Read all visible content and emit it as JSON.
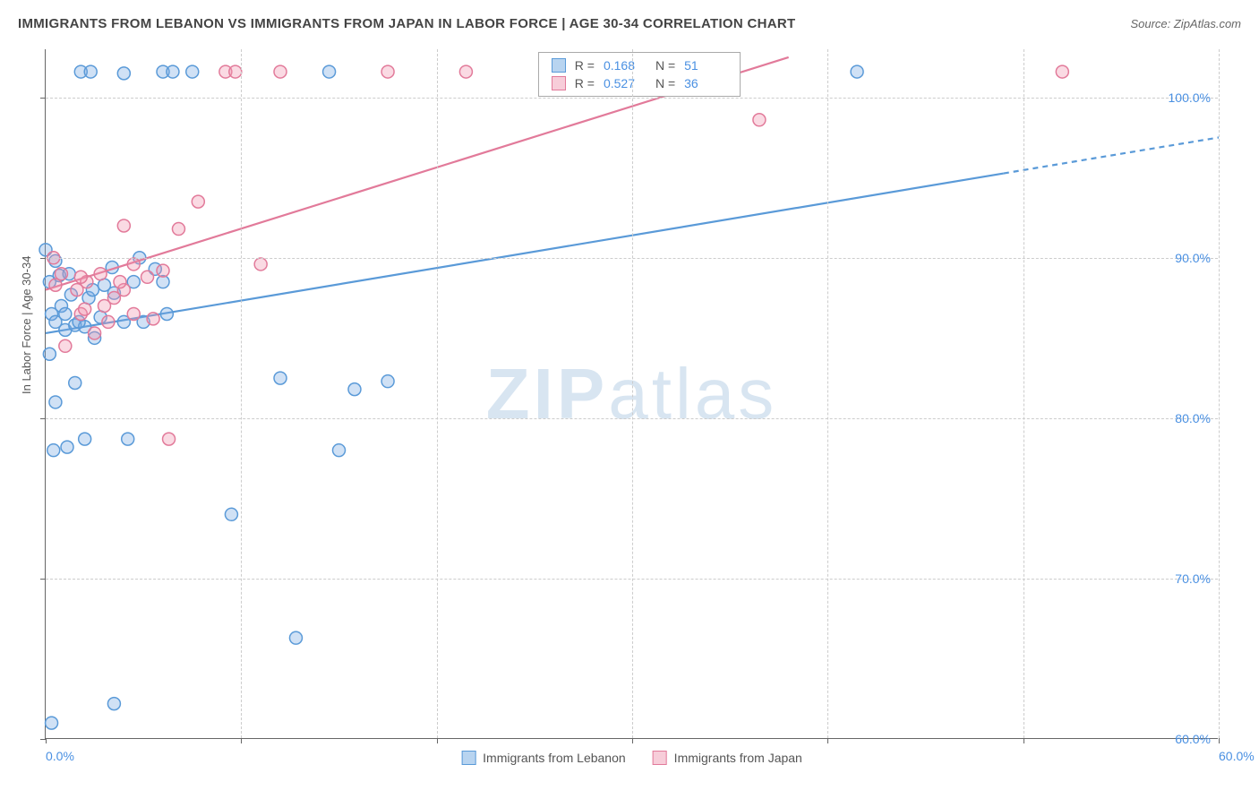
{
  "title": "IMMIGRANTS FROM LEBANON VS IMMIGRANTS FROM JAPAN IN LABOR FORCE | AGE 30-34 CORRELATION CHART",
  "source": "Source: ZipAtlas.com",
  "y_axis_label": "In Labor Force | Age 30-34",
  "watermark": {
    "part1": "ZIP",
    "part2": "atlas"
  },
  "chart": {
    "type": "scatter-with-trend",
    "xlim": [
      0,
      60
    ],
    "ylim": [
      60,
      103
    ],
    "x_ticks": [
      0,
      10,
      20,
      30,
      40,
      50,
      60
    ],
    "y_ticks": [
      60,
      70,
      80,
      90,
      100
    ],
    "x_tick_labels": [
      "0.0%",
      "",
      "",
      "",
      "",
      "",
      "60.0%"
    ],
    "y_tick_labels": [
      "60.0%",
      "70.0%",
      "80.0%",
      "90.0%",
      "100.0%"
    ],
    "background_color": "#ffffff",
    "grid_color": "#cccccc",
    "marker_radius": 7,
    "marker_stroke_width": 1.5,
    "series": [
      {
        "name": "Immigrants from Lebanon",
        "color_fill": "rgba(120,170,225,0.35)",
        "color_stroke": "#5a9ad8",
        "swatch_fill": "#b8d4f0",
        "swatch_border": "#5a9ad8",
        "R": "0.168",
        "N": "51",
        "trend": {
          "x1": 0,
          "y1": 85.3,
          "x2": 60,
          "y2": 97.5,
          "dash_from_x": 49
        },
        "points": [
          [
            0.3,
            61.0
          ],
          [
            3.5,
            62.2
          ],
          [
            12.8,
            66.3
          ],
          [
            9.5,
            74.0
          ],
          [
            0.4,
            78.0
          ],
          [
            1.1,
            78.2
          ],
          [
            2.0,
            78.7
          ],
          [
            4.2,
            78.7
          ],
          [
            15.0,
            78.0
          ],
          [
            0.5,
            81.0
          ],
          [
            1.5,
            82.2
          ],
          [
            0.2,
            84.0
          ],
          [
            1.0,
            85.5
          ],
          [
            1.5,
            85.8
          ],
          [
            2.0,
            85.7
          ],
          [
            2.8,
            86.3
          ],
          [
            3.5,
            87.8
          ],
          [
            4.0,
            86.0
          ],
          [
            5.0,
            86.0
          ],
          [
            6.2,
            86.5
          ],
          [
            0.3,
            86.5
          ],
          [
            0.8,
            87.0
          ],
          [
            1.3,
            87.7
          ],
          [
            2.2,
            87.5
          ],
          [
            0.2,
            88.5
          ],
          [
            0.7,
            88.9
          ],
          [
            0.0,
            90.5
          ],
          [
            1.2,
            89.0
          ],
          [
            2.4,
            88.0
          ],
          [
            3.4,
            89.4
          ],
          [
            5.6,
            89.3
          ],
          [
            0.5,
            89.8
          ],
          [
            3.0,
            88.3
          ],
          [
            4.5,
            88.5
          ],
          [
            4.8,
            90.0
          ],
          [
            6.0,
            88.5
          ],
          [
            12.0,
            82.5
          ],
          [
            15.8,
            81.8
          ],
          [
            17.5,
            82.3
          ],
          [
            1.8,
            101.6
          ],
          [
            2.3,
            101.6
          ],
          [
            4.0,
            101.5
          ],
          [
            6.0,
            101.6
          ],
          [
            6.5,
            101.6
          ],
          [
            7.5,
            101.6
          ],
          [
            14.5,
            101.6
          ],
          [
            41.5,
            101.6
          ],
          [
            0.5,
            86.0
          ],
          [
            1.0,
            86.5
          ],
          [
            2.5,
            85.0
          ],
          [
            1.7,
            86.0
          ]
        ]
      },
      {
        "name": "Immigrants from Japan",
        "color_fill": "rgba(240,150,175,0.35)",
        "color_stroke": "#e27a9a",
        "swatch_fill": "#f7cdd9",
        "swatch_border": "#e27a9a",
        "R": "0.527",
        "N": "36",
        "trend": {
          "x1": 0,
          "y1": 88.0,
          "x2": 38,
          "y2": 102.5,
          "dash_from_x": 999
        },
        "points": [
          [
            6.3,
            78.7
          ],
          [
            1.0,
            84.5
          ],
          [
            2.5,
            85.3
          ],
          [
            3.2,
            86.0
          ],
          [
            4.5,
            86.5
          ],
          [
            5.5,
            86.2
          ],
          [
            1.8,
            86.5
          ],
          [
            3.0,
            87.0
          ],
          [
            0.5,
            88.3
          ],
          [
            1.6,
            88.0
          ],
          [
            2.1,
            88.5
          ],
          [
            4.0,
            88.0
          ],
          [
            0.8,
            89.0
          ],
          [
            2.8,
            89.0
          ],
          [
            3.8,
            88.5
          ],
          [
            5.2,
            88.8
          ],
          [
            6.0,
            89.2
          ],
          [
            0.4,
            90.0
          ],
          [
            4.5,
            89.6
          ],
          [
            11.0,
            89.6
          ],
          [
            4.0,
            92.0
          ],
          [
            6.8,
            91.8
          ],
          [
            1.8,
            88.8
          ],
          [
            7.8,
            93.5
          ],
          [
            2.0,
            86.8
          ],
          [
            9.2,
            101.6
          ],
          [
            9.7,
            101.6
          ],
          [
            12.0,
            101.6
          ],
          [
            17.5,
            101.6
          ],
          [
            21.5,
            101.6
          ],
          [
            29.0,
            101.6
          ],
          [
            34.0,
            101.6
          ],
          [
            36.5,
            98.6
          ],
          [
            52.0,
            101.6
          ],
          [
            32.5,
            101.6
          ],
          [
            3.5,
            87.5
          ]
        ]
      }
    ]
  },
  "stats_legend": {
    "r_label": "R  =",
    "n_label": "N  ="
  }
}
